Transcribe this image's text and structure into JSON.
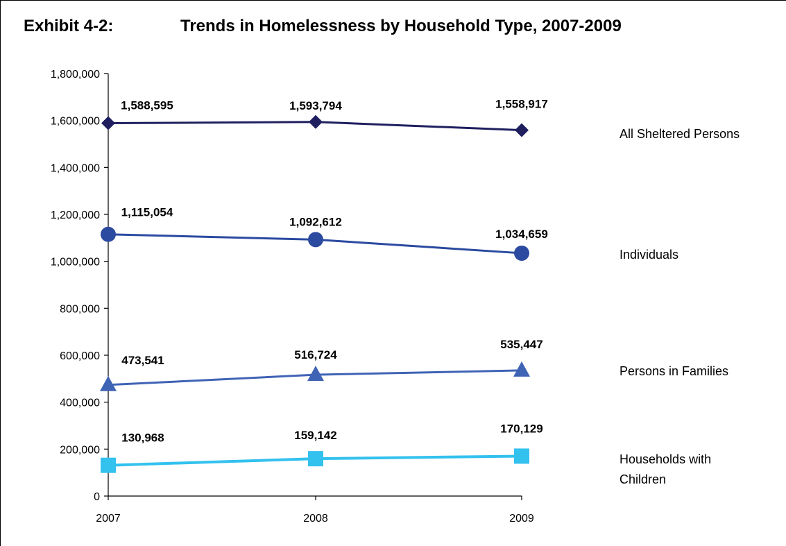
{
  "exhibit": "Exhibit 4-2:",
  "chart_data": {
    "type": "line",
    "title": "Trends in Homelessness by Household Type, 2007-2009",
    "xlabel": "",
    "ylabel": "",
    "x": [
      "2007",
      "2008",
      "2009"
    ],
    "ylim": [
      0,
      1800000
    ],
    "yticks": [
      "0",
      "200,000",
      "400,000",
      "600,000",
      "800,000",
      "1,000,000",
      "1,200,000",
      "1,400,000",
      "1,600,000",
      "1,800,000"
    ],
    "grid": false,
    "series": [
      {
        "name": "All Sheltered Persons",
        "name_lines": [
          "All Sheltered Persons"
        ],
        "values": [
          1588595,
          1593794,
          1558917
        ],
        "labels": [
          "1,588,595",
          "1,593,794",
          "1,558,917"
        ],
        "marker": "diamond",
        "color": "#1f1f5f"
      },
      {
        "name": "Individuals",
        "name_lines": [
          "Individuals"
        ],
        "values": [
          1115054,
          1092612,
          1034659
        ],
        "labels": [
          "1,115,054",
          "1,092,612",
          "1,034,659"
        ],
        "marker": "circle",
        "color": "#2b4aa0"
      },
      {
        "name": "Persons in Families",
        "name_lines": [
          "Persons in Families"
        ],
        "values": [
          473541,
          516724,
          535447
        ],
        "labels": [
          "473,541",
          "516,724",
          "535,447"
        ],
        "marker": "triangle",
        "color": "#3f63b5"
      },
      {
        "name": "Households with Children",
        "name_lines": [
          "Households with",
          "Children"
        ],
        "values": [
          130968,
          159142,
          170129
        ],
        "labels": [
          "130,968",
          "159,142",
          "170,129"
        ],
        "marker": "square",
        "color": "#33c1ee"
      }
    ]
  }
}
